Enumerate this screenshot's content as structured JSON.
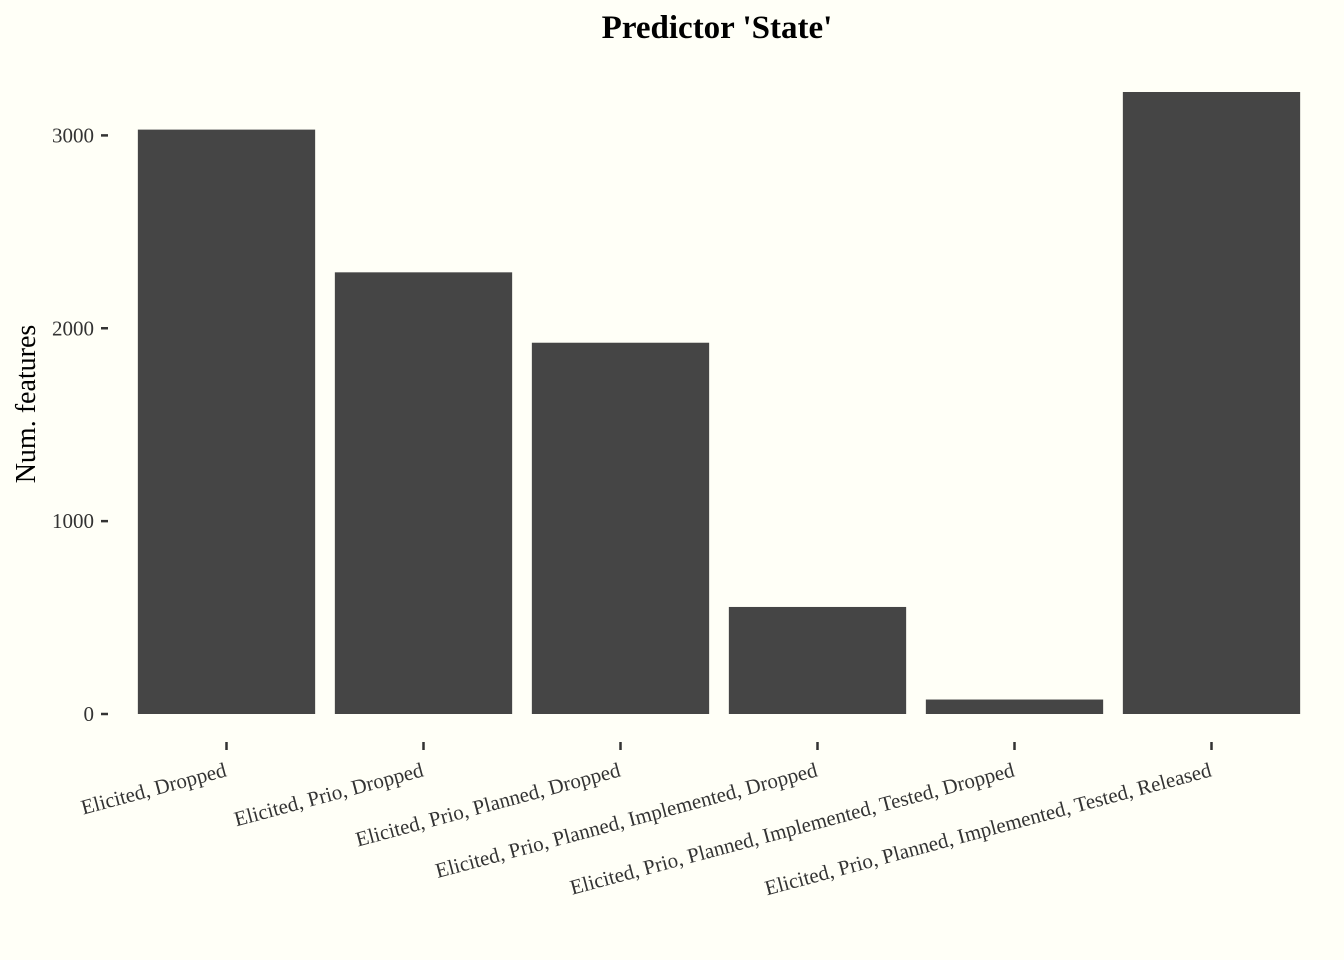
{
  "colors": {
    "background": "#fffff7",
    "bar": "#454545",
    "tick": "#333333",
    "text": "#000000"
  },
  "chart_data": {
    "type": "bar",
    "title": "Predictor 'State'",
    "xlabel": "",
    "ylabel": "Num. features",
    "categories": [
      "Elicited, Dropped",
      "Elicited, Prio, Dropped",
      "Elicited, Prio, Planned, Dropped",
      "Elicited, Prio, Planned, Implemented, Dropped",
      "Elicited, Prio, Planned, Implemented, Tested, Dropped",
      "Elicited, Prio, Planned, Implemented, Tested, Released"
    ],
    "values": [
      3030,
      2290,
      1925,
      555,
      75,
      3225
    ],
    "ylim": [
      0,
      3225
    ],
    "yticks": [
      0,
      1000,
      2000,
      3000
    ],
    "ytick_labels": [
      "0",
      "1000",
      "2000",
      "3000"
    ],
    "grid": false,
    "legend": "none"
  }
}
